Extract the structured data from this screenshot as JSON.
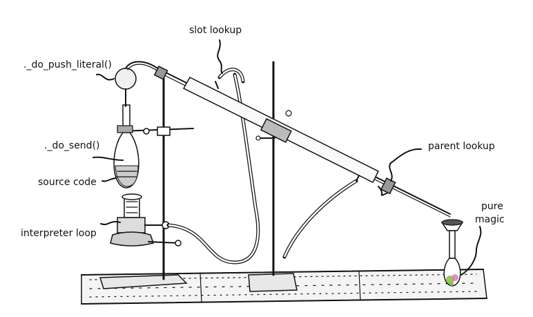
{
  "labels": {
    "push_literal": "._do_push_literal()",
    "slot_lookup": "slot lookup",
    "do_send": "._do_send()",
    "source_code": "source code",
    "parent_lookup": "parent lookup",
    "interpreter_loop": "interpreter loop",
    "pure": "pure",
    "magic": "magic"
  },
  "colors": {
    "ink": "#111111",
    "background": "#ffffff",
    "magic_green": "#7fbf3f",
    "magic_pink": "#e07ab0"
  }
}
